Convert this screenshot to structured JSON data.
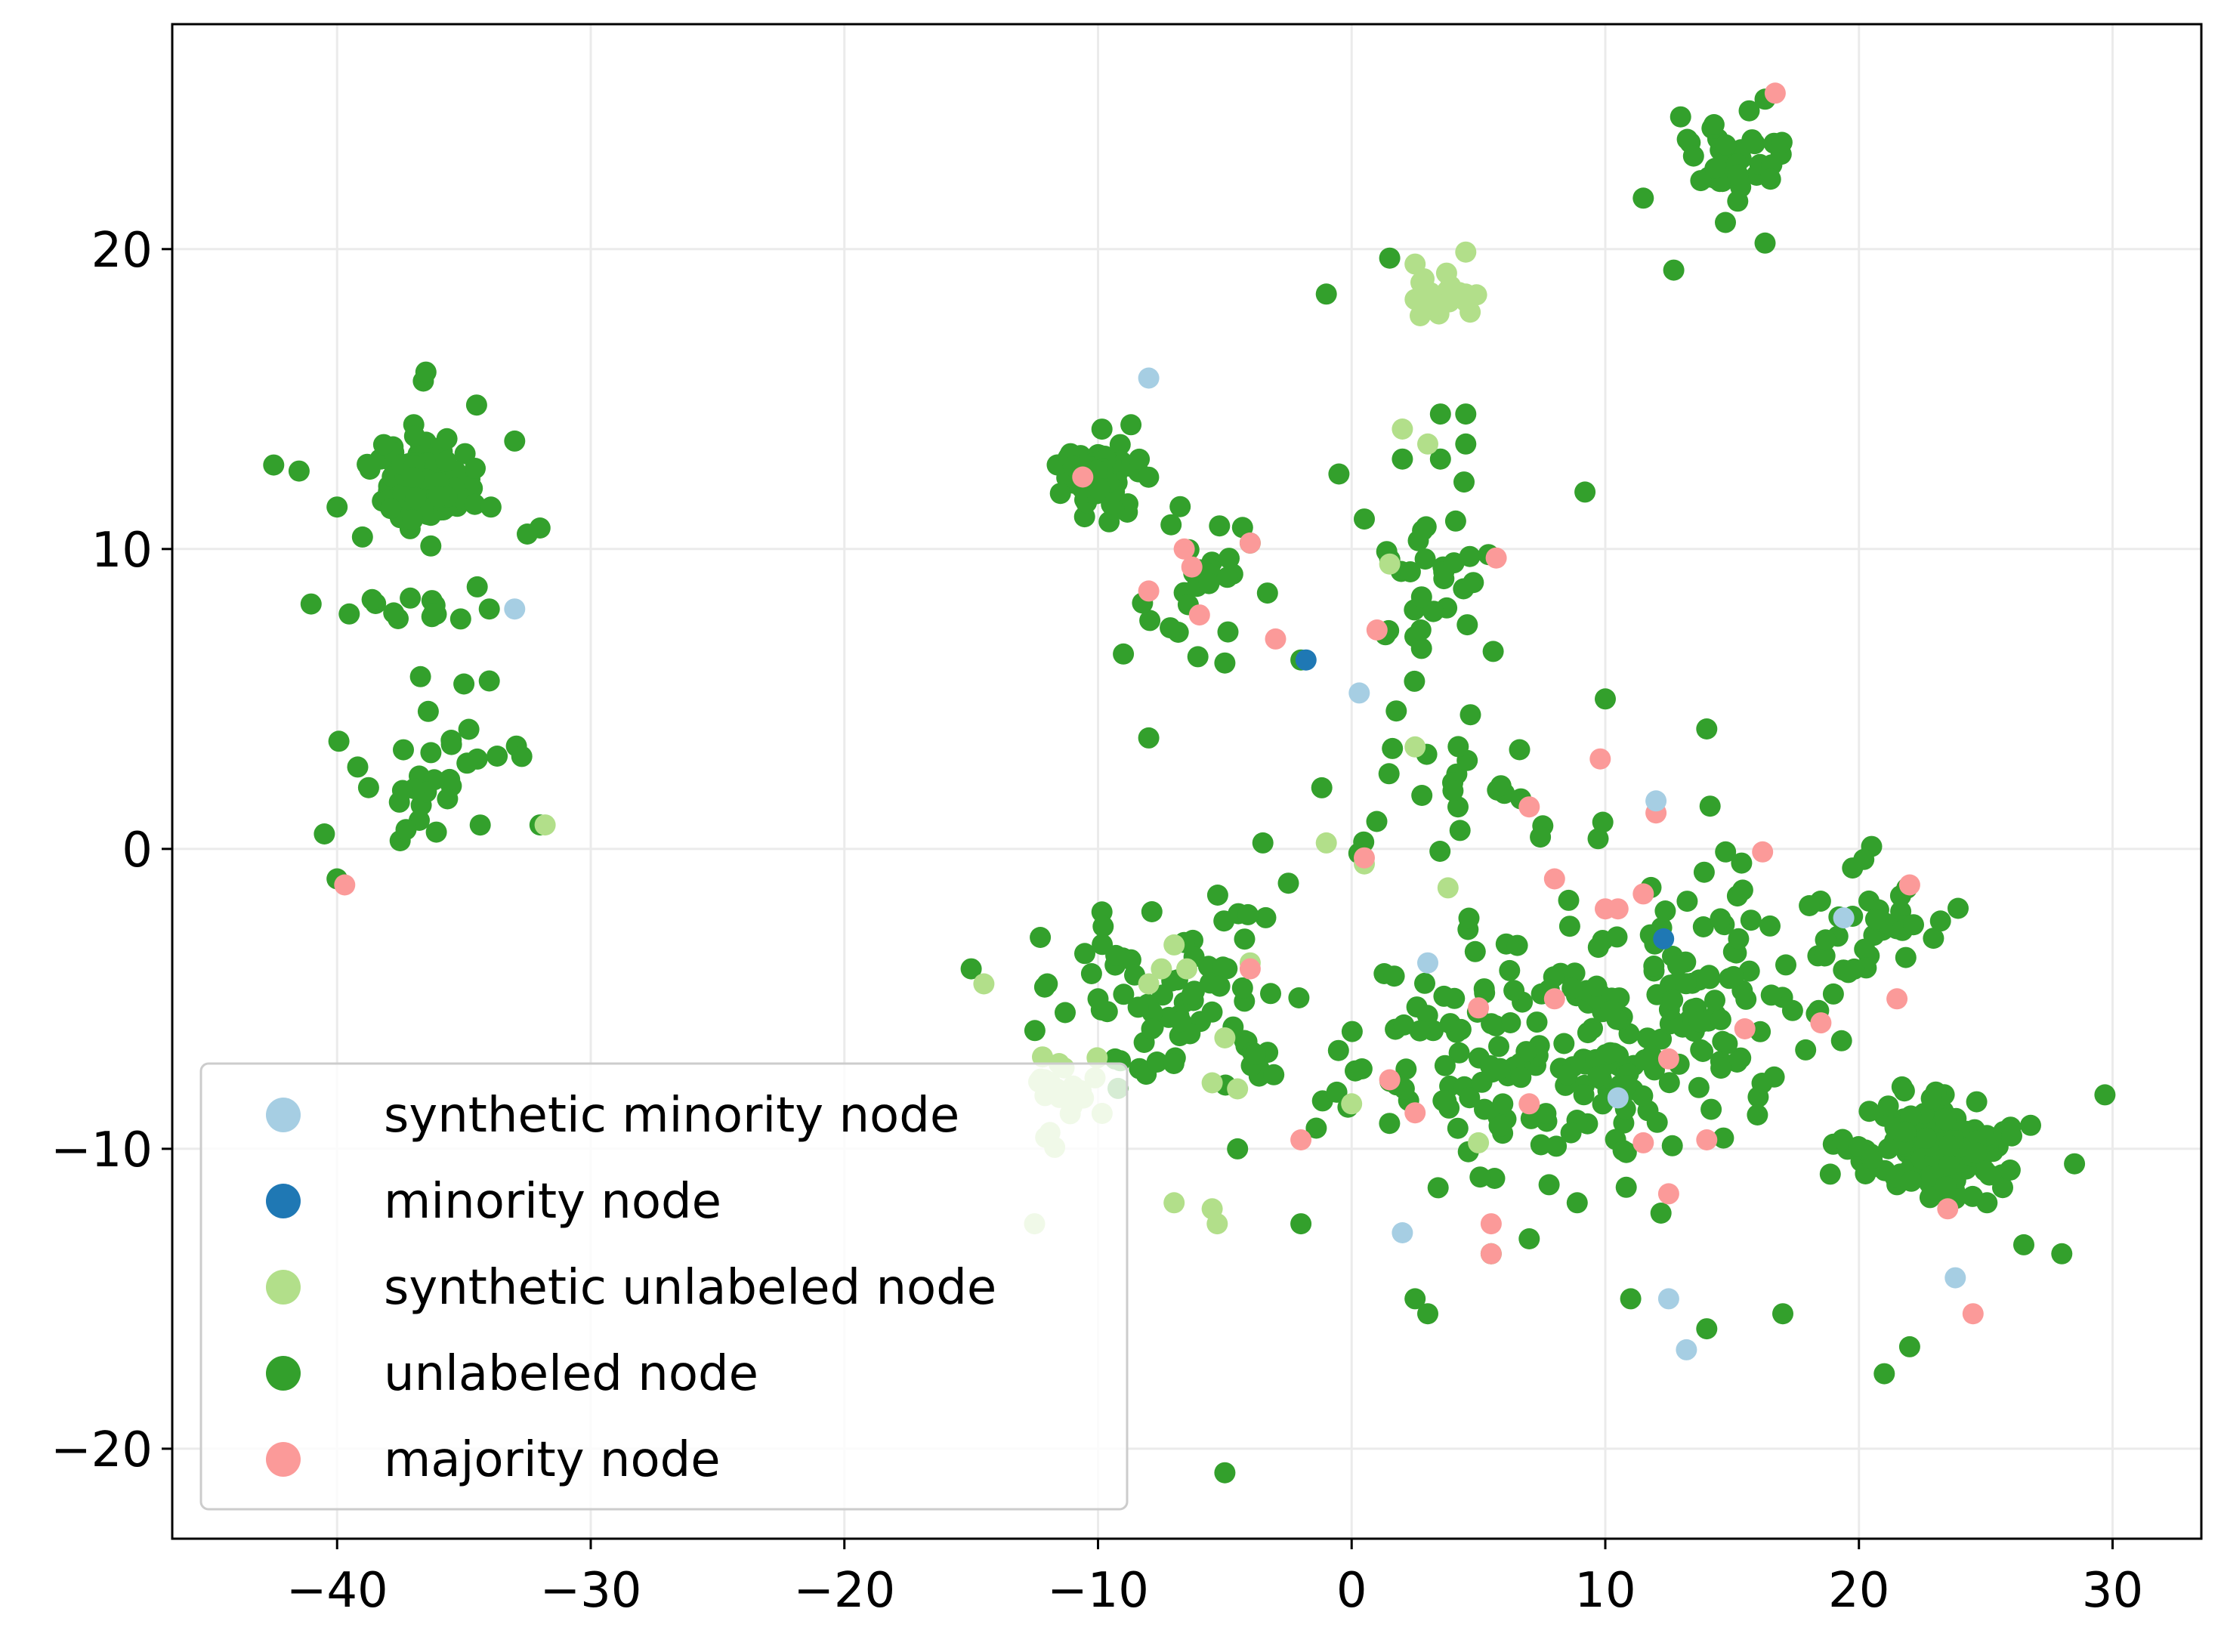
{
  "chart_data": {
    "type": "scatter",
    "title": "",
    "xlabel": "",
    "ylabel": "",
    "xlim": [
      -46.5,
      33.5
    ],
    "ylim": [
      -23,
      27.5
    ],
    "grid": true,
    "legend_position": "bottom-left",
    "xticks": [
      -40,
      -30,
      -20,
      -10,
      0,
      10,
      20,
      30
    ],
    "yticks": [
      -20,
      -10,
      0,
      10,
      20
    ],
    "xtick_labels": [
      "−40",
      "−30",
      "−20",
      "−10",
      "0",
      "10",
      "20",
      "30"
    ],
    "ytick_labels": [
      "−20",
      "−10",
      "0",
      "10",
      "20"
    ],
    "colors": {
      "synthetic_minority": "#a6cee3",
      "minority": "#1f78b4",
      "synthetic_unlabeled": "#b2df8a",
      "unlabeled": "#33a02c",
      "majority": "#fb9a99"
    },
    "legend": [
      {
        "key": "synthetic_minority",
        "label": "synthetic minority node"
      },
      {
        "key": "minority",
        "label": "minority node"
      },
      {
        "key": "synthetic_unlabeled",
        "label": "synthetic unlabeled node"
      },
      {
        "key": "unlabeled",
        "label": "unlabeled node"
      },
      {
        "key": "majority",
        "label": "majority node"
      }
    ],
    "series": [
      {
        "name": "unlabeled node",
        "key": "unlabeled",
        "clusters": [
          {
            "center": [
              -36.5,
              12.2
            ],
            "spread": [
              1.7,
              1.3
            ],
            "count": 140
          },
          {
            "center": [
              15.0,
              23.0
            ],
            "spread": [
              1.5,
              1.4
            ],
            "count": 40
          },
          {
            "center": [
              23.0,
              -10.0
            ],
            "spread": [
              2.5,
              1.6
            ],
            "count": 170
          },
          {
            "center": [
              -10.0,
              12.5
            ],
            "spread": [
              1.6,
              1.1
            ],
            "count": 55
          },
          {
            "center": [
              -36.0,
              2.5
            ],
            "spread": [
              3.0,
              2.0
            ],
            "count": 30
          },
          {
            "center": [
              -37.0,
              8.0
            ],
            "spread": [
              3.5,
              0.6
            ],
            "count": 14
          },
          {
            "center": [
              3.0,
              9.0
            ],
            "spread": [
              2.0,
              2.5
            ],
            "count": 30
          },
          {
            "center": [
              -6.0,
              9.0
            ],
            "spread": [
              2.5,
              2.0
            ],
            "count": 25
          },
          {
            "center": [
              8.0,
              -7.0
            ],
            "spread": [
              8.0,
              4.0
            ],
            "count": 200
          },
          {
            "center": [
              14.0,
              -3.0
            ],
            "spread": [
              3.0,
              4.0
            ],
            "count": 40
          },
          {
            "center": [
              -7.0,
              -5.0
            ],
            "spread": [
              4.0,
              3.0
            ],
            "count": 70
          },
          {
            "center": [
              3.0,
              2.0
            ],
            "spread": [
              5.0,
              3.0
            ],
            "count": 30
          },
          {
            "center": [
              20.0,
              -3.0
            ],
            "spread": [
              3.5,
              2.5
            ],
            "count": 40
          },
          {
            "center": [
              -10.0,
              12.5
            ],
            "spread": [
              0.6,
              0.6
            ],
            "count": 40
          }
        ],
        "points": [
          [
            -42.5,
            12.8
          ],
          [
            -41.5,
            12.6
          ],
          [
            -40.0,
            11.4
          ],
          [
            -39.0,
            10.4
          ],
          [
            -32.0,
            10.7
          ],
          [
            -32.5,
            10.5
          ],
          [
            -33.0,
            13.6
          ],
          [
            -34.5,
            14.8
          ],
          [
            -36.6,
            15.6
          ],
          [
            -36.5,
            15.9
          ],
          [
            -35.0,
            5.5
          ],
          [
            -34.0,
            5.6
          ],
          [
            -40.5,
            0.5
          ],
          [
            -40.0,
            -1.0
          ],
          [
            -32.0,
            0.8
          ],
          [
            -34.0,
            8.0
          ],
          [
            9.2,
            11.9
          ],
          [
            10.0,
            5.0
          ],
          [
            14.0,
            4.0
          ],
          [
            0.5,
            11.0
          ],
          [
            2.0,
            13.0
          ],
          [
            3.5,
            14.5
          ],
          [
            4.5,
            14.5
          ],
          [
            4.5,
            13.5
          ],
          [
            1.5,
            19.7
          ],
          [
            -1.0,
            18.5
          ],
          [
            3.5,
            13.0
          ],
          [
            -0.5,
            12.5
          ],
          [
            -2.0,
            6.3
          ],
          [
            -5.0,
            6.2
          ],
          [
            -9.0,
            6.5
          ],
          [
            -8.0,
            3.7
          ],
          [
            -4.0,
            10.2
          ],
          [
            -3.5,
            0.2
          ],
          [
            -5.0,
            -20.8
          ],
          [
            12.7,
            19.3
          ],
          [
            16.3,
            20.2
          ],
          [
            11.5,
            21.7
          ],
          [
            16.3,
            25.0
          ],
          [
            21.0,
            -17.5
          ],
          [
            22.0,
            -16.6
          ],
          [
            28.5,
            -10.5
          ],
          [
            29.7,
            -8.2
          ],
          [
            26.5,
            -13.2
          ],
          [
            28.0,
            -13.5
          ],
          [
            -10.0,
            -5.0
          ],
          [
            -12.0,
            -4.5
          ],
          [
            -15.0,
            -4.0
          ],
          [
            -2.0,
            -12.5
          ],
          [
            2.5,
            -15.0
          ],
          [
            7.0,
            -13.0
          ],
          [
            11.0,
            -15.0
          ],
          [
            14.0,
            -16.0
          ],
          [
            17.0,
            -15.5
          ],
          [
            5.5,
            -13.5
          ],
          [
            3.0,
            -15.5
          ],
          [
            -4.5,
            -10.0
          ]
        ]
      },
      {
        "name": "synthetic unlabeled node",
        "key": "synthetic_unlabeled",
        "clusters": [
          {
            "center": [
              3.5,
              18.5
            ],
            "spread": [
              1.2,
              0.8
            ],
            "count": 18
          },
          {
            "center": [
              -11.5,
              -8.0
            ],
            "spread": [
              1.5,
              1.8
            ],
            "count": 25
          }
        ],
        "points": [
          [
            -31.8,
            0.8
          ],
          [
            1.5,
            9.5
          ],
          [
            2.0,
            14.0
          ],
          [
            3.0,
            13.5
          ],
          [
            2.5,
            3.4
          ],
          [
            -1.0,
            0.2
          ],
          [
            0.5,
            -0.5
          ],
          [
            3.8,
            -1.3
          ],
          [
            -14.5,
            -4.5
          ],
          [
            -12.5,
            -12.5
          ],
          [
            -7.5,
            -4.0
          ],
          [
            -7.0,
            -3.2
          ],
          [
            -6.5,
            -4.0
          ],
          [
            -5.5,
            -7.8
          ],
          [
            -5.0,
            -6.3
          ],
          [
            -4.5,
            -8.0
          ],
          [
            -4.0,
            -3.8
          ],
          [
            -7.0,
            -11.8
          ],
          [
            -5.5,
            -12.0
          ],
          [
            -5.3,
            -12.5
          ],
          [
            -8.0,
            -4.5
          ],
          [
            0.0,
            -8.5
          ],
          [
            5.0,
            -9.8
          ],
          [
            4.5,
            18.5
          ],
          [
            2.5,
            19.5
          ],
          [
            4.5,
            19.9
          ]
        ]
      },
      {
        "name": "majority node",
        "key": "majority",
        "points": [
          [
            -39.7,
            -1.2
          ],
          [
            16.7,
            25.2
          ],
          [
            -10.6,
            12.4
          ],
          [
            -6.6,
            10.0
          ],
          [
            -6.3,
            9.4
          ],
          [
            -4.0,
            10.2
          ],
          [
            -8.0,
            8.6
          ],
          [
            -6.0,
            7.8
          ],
          [
            -3.0,
            7.0
          ],
          [
            5.7,
            9.7
          ],
          [
            1.0,
            7.3
          ],
          [
            0.5,
            -0.3
          ],
          [
            7.0,
            1.4
          ],
          [
            9.8,
            3.0
          ],
          [
            10.0,
            -2.0
          ],
          [
            10.5,
            -2.0
          ],
          [
            11.5,
            -1.5
          ],
          [
            12.0,
            1.2
          ],
          [
            8.0,
            -5.0
          ],
          [
            8.0,
            -1.0
          ],
          [
            12.5,
            -7.0
          ],
          [
            15.5,
            -6.0
          ],
          [
            16.2,
            -0.1
          ],
          [
            18.5,
            -5.8
          ],
          [
            22.0,
            -1.2
          ],
          [
            21.5,
            -5.0
          ],
          [
            -4.0,
            -4.0
          ],
          [
            1.5,
            -7.7
          ],
          [
            2.5,
            -8.8
          ],
          [
            5.0,
            -5.3
          ],
          [
            5.5,
            -12.5
          ],
          [
            5.5,
            -13.5
          ],
          [
            7.0,
            -8.5
          ],
          [
            11.5,
            -9.8
          ],
          [
            12.5,
            -11.5
          ],
          [
            14.0,
            -9.7
          ],
          [
            24.5,
            -15.5
          ],
          [
            -2.0,
            -9.7
          ],
          [
            23.5,
            -12.0
          ]
        ]
      },
      {
        "name": "synthetic minority node",
        "key": "synthetic_minority",
        "points": [
          [
            -33.0,
            8.0
          ],
          [
            -8.0,
            15.7
          ],
          [
            0.3,
            5.2
          ],
          [
            12.0,
            1.6
          ],
          [
            3.0,
            -3.8
          ],
          [
            10.5,
            -8.3
          ],
          [
            12.5,
            -15.0
          ],
          [
            13.2,
            -16.7
          ],
          [
            19.4,
            -2.3
          ],
          [
            23.8,
            -14.3
          ],
          [
            2.0,
            -12.8
          ]
        ]
      },
      {
        "name": "minority node",
        "key": "minority",
        "points": [
          [
            -1.8,
            6.3
          ],
          [
            12.3,
            -3.0
          ]
        ]
      }
    ]
  }
}
